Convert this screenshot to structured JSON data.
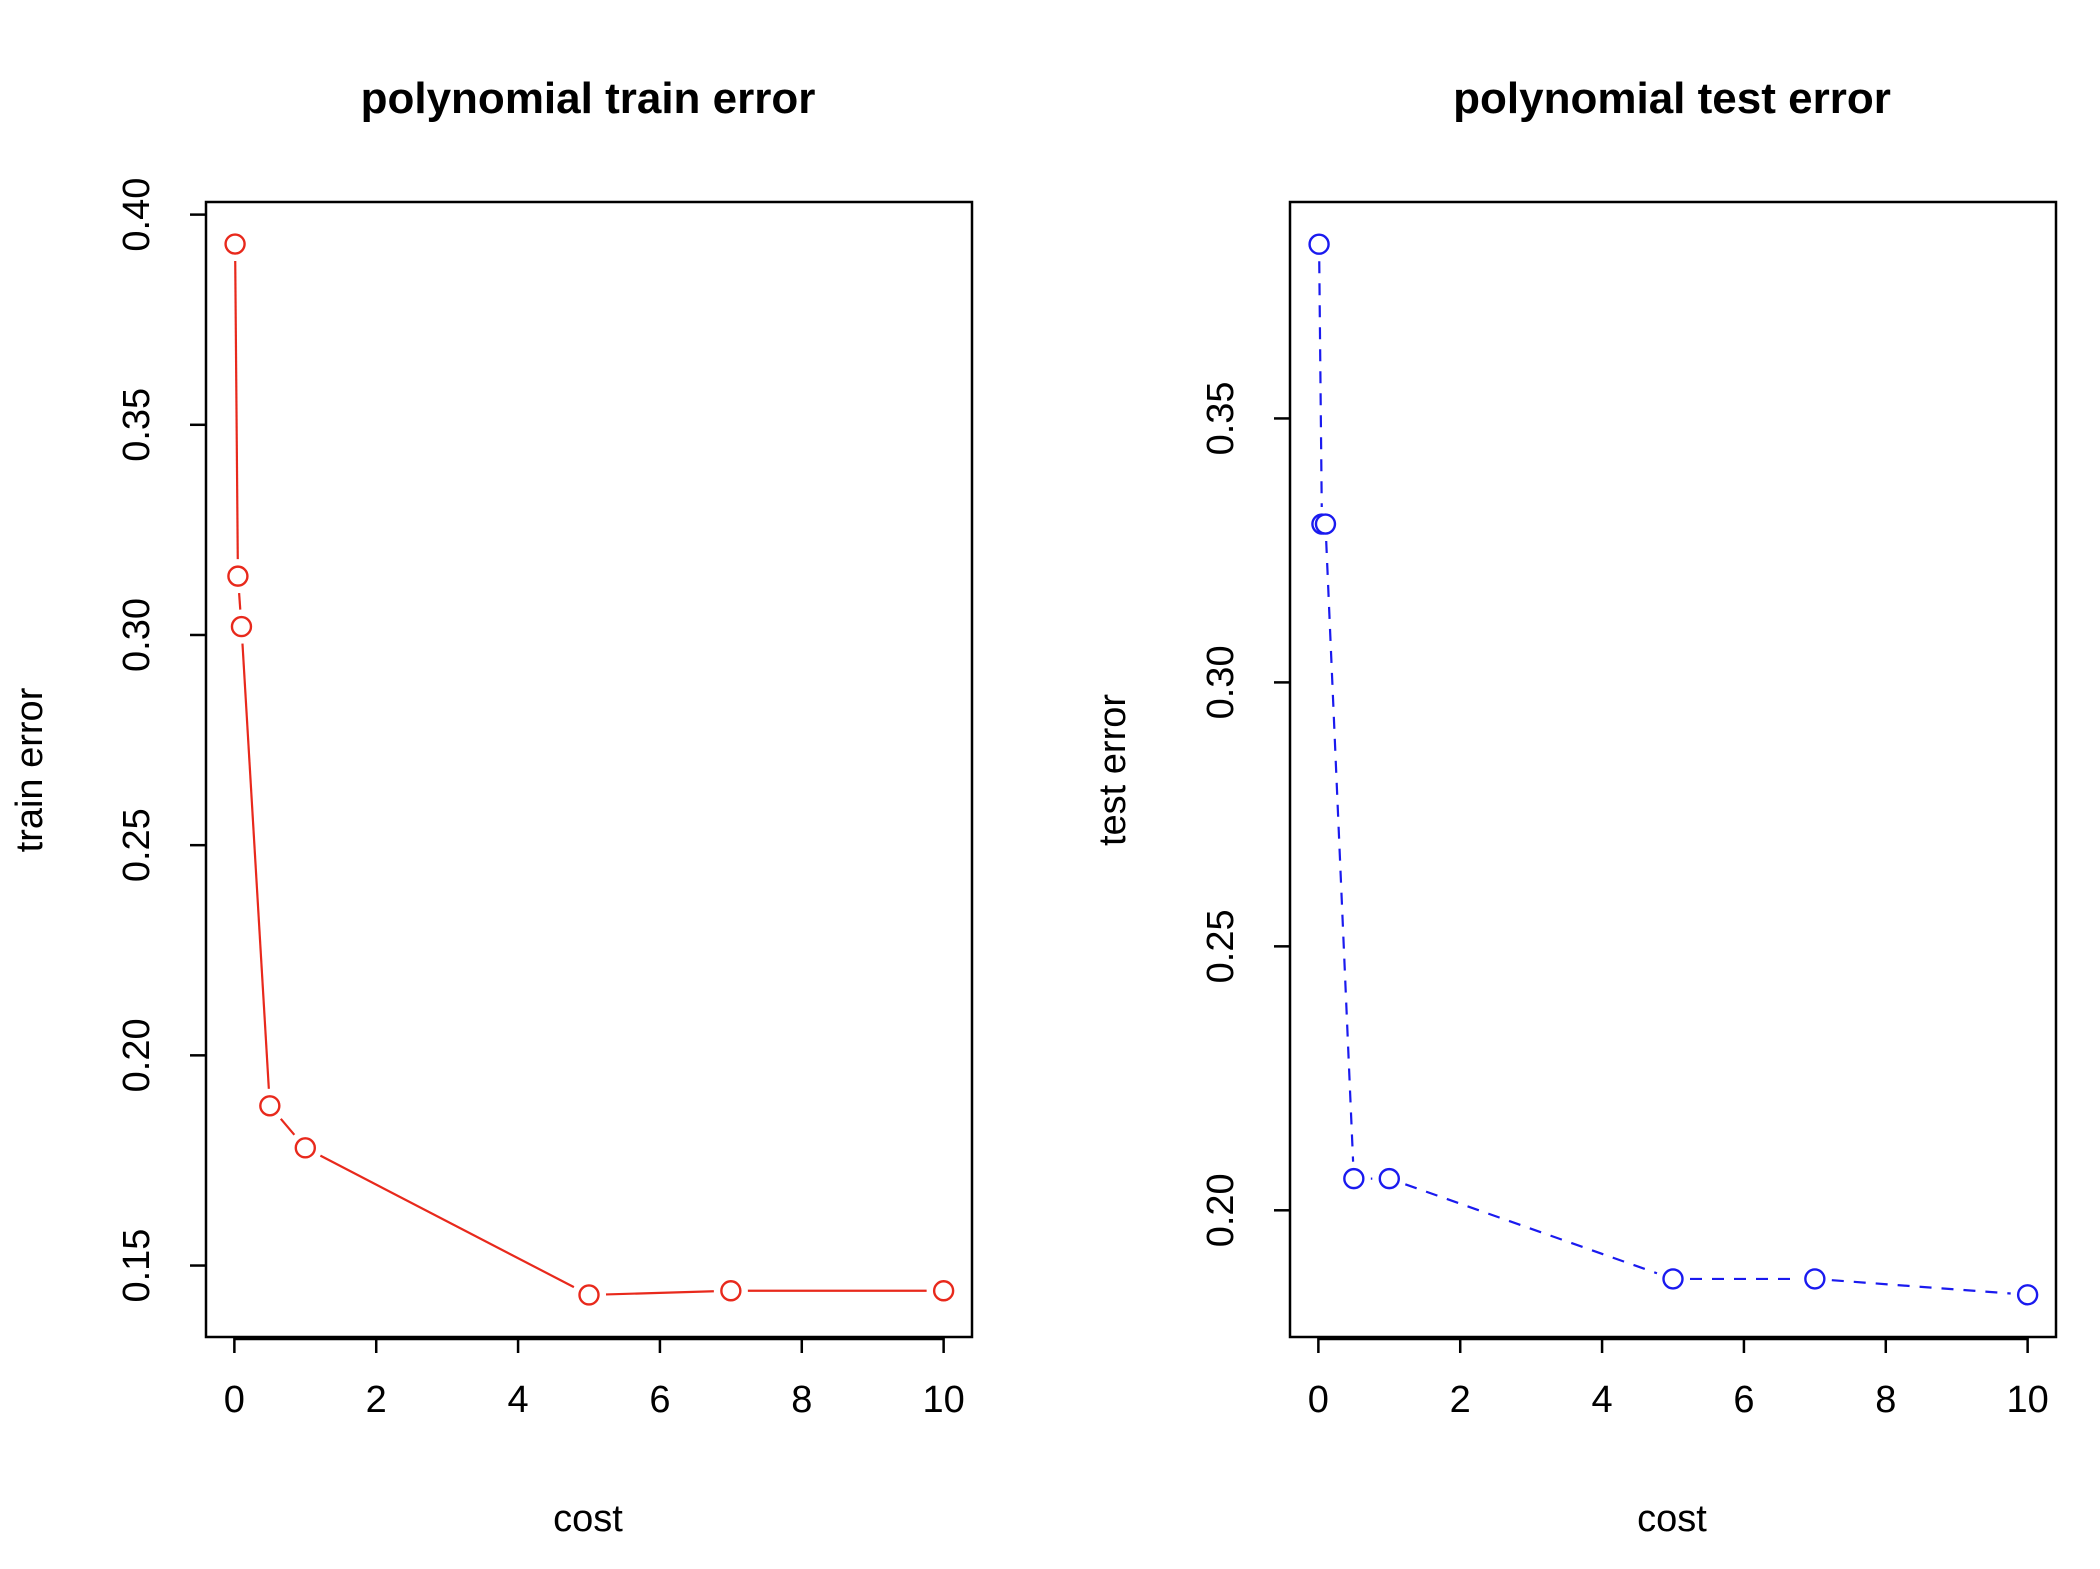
{
  "chart_data": [
    {
      "type": "line",
      "title": "polynomial train error",
      "xlabel": "cost",
      "ylabel": "train error",
      "xlim": [
        -0.4,
        10.4
      ],
      "ylim": [
        0.133,
        0.403
      ],
      "xticks": [
        0,
        2,
        4,
        6,
        8,
        10
      ],
      "yticks": [
        0.15,
        0.2,
        0.25,
        0.3,
        0.35,
        0.4
      ],
      "xtick_labels": [
        "0",
        "2",
        "4",
        "6",
        "8",
        "10"
      ],
      "ytick_labels": [
        "0.15",
        "0.20",
        "0.25",
        "0.30",
        "0.35",
        "0.40"
      ],
      "grid": false,
      "series": [
        {
          "color": "#e8291c",
          "line_style": "solid",
          "marker": "open-circle",
          "x": [
            0.01,
            0.05,
            0.1,
            0.5,
            1,
            5,
            7,
            10
          ],
          "y": [
            0.393,
            0.314,
            0.302,
            0.188,
            0.178,
            0.143,
            0.144,
            0.144
          ]
        }
      ]
    },
    {
      "type": "line",
      "title": "polynomial test error",
      "xlabel": "cost",
      "ylabel": "test error",
      "xlim": [
        -0.4,
        10.4
      ],
      "ylim": [
        0.176,
        0.391
      ],
      "xticks": [
        0,
        2,
        4,
        6,
        8,
        10
      ],
      "yticks": [
        0.2,
        0.25,
        0.3,
        0.35
      ],
      "xtick_labels": [
        "0",
        "2",
        "4",
        "6",
        "8",
        "10"
      ],
      "ytick_labels": [
        "0.20",
        "0.25",
        "0.30",
        "0.35"
      ],
      "grid": false,
      "series": [
        {
          "color": "#1a1aef",
          "line_style": "dashed",
          "marker": "open-circle",
          "x": [
            0.01,
            0.05,
            0.1,
            0.5,
            1,
            5,
            7,
            10
          ],
          "y": [
            0.383,
            0.33,
            0.33,
            0.206,
            0.206,
            0.187,
            0.187,
            0.184
          ]
        }
      ]
    }
  ]
}
